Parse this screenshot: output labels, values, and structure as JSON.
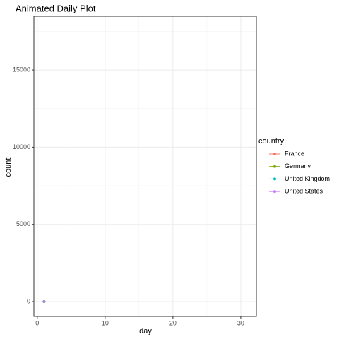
{
  "chart_data": {
    "type": "line",
    "title": "Animated Daily Plot",
    "x_label": "day",
    "y_label": "count",
    "x": [
      1
    ],
    "series": [
      {
        "name": "France",
        "color": "#F8766D",
        "values": [
          0
        ]
      },
      {
        "name": "Germany",
        "color": "#7CAE00",
        "values": [
          0
        ]
      },
      {
        "name": "United Kingdom",
        "color": "#00BFC4",
        "values": [
          0
        ]
      },
      {
        "name": "United States",
        "color": "#C77CFF",
        "values": [
          1
        ]
      }
    ],
    "legend_title": "country",
    "legend": "right",
    "xlim": [
      -0.5,
      32.3
    ],
    "xticks": [
      0,
      10,
      20,
      30
    ],
    "ylim": [
      -960,
      18480
    ],
    "yticks": [
      0,
      5000,
      10000,
      15000
    ],
    "grid": true,
    "minor_grid": true
  }
}
